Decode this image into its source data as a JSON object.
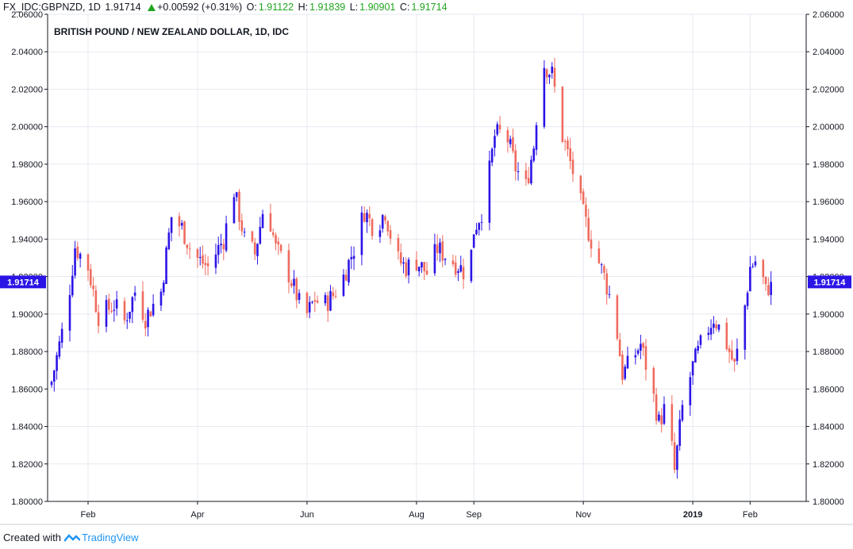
{
  "header": {
    "symbol": "FX_IDC:GBPNZD, 1D",
    "last": "1.91714",
    "change": "+0.00592 (+0.31%)",
    "o_label": "O:",
    "o_value": "1.91122",
    "h_label": "H:",
    "h_value": "1.91839",
    "l_label": "L:",
    "l_value": "1.90901",
    "c_label": "C:",
    "c_value": "1.91714"
  },
  "footer": {
    "created_with": "Created with",
    "brand": "TradingView"
  },
  "colors": {
    "up": "#2b14e6",
    "down": "#ef6b5e",
    "grid": "#e6e9f0",
    "axis": "#131722",
    "price_tag": "#2b14e6"
  },
  "chart_data": {
    "type": "candlestick",
    "title": "BRITISH POUND / NEW ZEALAND DOLLAR, 1D, IDC",
    "ylim": [
      1.8,
      2.06
    ],
    "y_ticks": [
      1.8,
      1.82,
      1.84,
      1.86,
      1.88,
      1.9,
      1.92,
      1.94,
      1.96,
      1.98,
      2.0,
      2.02,
      2.04,
      2.06
    ],
    "y_tick_labels": [
      "1.80000",
      "1.82000",
      "1.84000",
      "1.86000",
      "1.88000",
      "1.90000",
      "1.92000",
      "1.94000",
      "1.96000",
      "1.98000",
      "2.00000",
      "2.02000",
      "2.04000",
      "2.06000"
    ],
    "x_ticks": [
      {
        "label": "Feb",
        "index": 14
      },
      {
        "label": "Apr",
        "index": 56
      },
      {
        "label": "Jun",
        "index": 98
      },
      {
        "label": "Aug",
        "index": 140
      },
      {
        "label": "Sep",
        "index": 162
      },
      {
        "label": "Nov",
        "index": 204
      },
      {
        "label": "2019",
        "index": 246
      },
      {
        "label": "Feb",
        "index": 268
      }
    ],
    "last_price_label": "1.91714",
    "last_price": 1.91714,
    "grid": true,
    "close_path": [
      [
        0,
        1.864
      ],
      [
        6,
        1.903
      ],
      [
        9,
        1.936
      ],
      [
        14,
        1.925
      ],
      [
        18,
        1.899
      ],
      [
        24,
        1.905
      ],
      [
        28,
        1.896
      ],
      [
        32,
        1.912
      ],
      [
        36,
        1.898
      ],
      [
        42,
        1.912
      ],
      [
        46,
        1.952
      ],
      [
        50,
        1.946
      ],
      [
        54,
        1.932
      ],
      [
        60,
        1.925
      ],
      [
        66,
        1.94
      ],
      [
        70,
        1.966
      ],
      [
        74,
        1.94
      ],
      [
        78,
        1.932
      ],
      [
        82,
        1.962
      ],
      [
        86,
        1.935
      ],
      [
        90,
        1.925
      ],
      [
        94,
        1.91
      ],
      [
        97,
        1.897
      ],
      [
        101,
        1.908
      ],
      [
        104,
        1.904
      ],
      [
        108,
        1.91
      ],
      [
        112,
        1.92
      ],
      [
        116,
        1.935
      ],
      [
        120,
        1.955
      ],
      [
        124,
        1.945
      ],
      [
        128,
        1.955
      ],
      [
        132,
        1.93
      ],
      [
        136,
        1.925
      ],
      [
        140,
        1.928
      ],
      [
        144,
        1.922
      ],
      [
        148,
        1.935
      ],
      [
        152,
        1.93
      ],
      [
        156,
        1.926
      ],
      [
        160,
        1.92
      ],
      [
        162,
        1.945
      ],
      [
        166,
        1.958
      ],
      [
        170,
        1.995
      ],
      [
        174,
        1.998
      ],
      [
        178,
        1.978
      ],
      [
        182,
        1.968
      ],
      [
        185,
        1.99
      ],
      [
        188,
        2.035
      ],
      [
        192,
        2.028
      ],
      [
        196,
        1.995
      ],
      [
        200,
        1.976
      ],
      [
        204,
        1.953
      ],
      [
        208,
        1.935
      ],
      [
        212,
        1.92
      ],
      [
        216,
        1.9
      ],
      [
        219,
        1.868
      ],
      [
        222,
        1.874
      ],
      [
        226,
        1.884
      ],
      [
        230,
        1.862
      ],
      [
        233,
        1.842
      ],
      [
        236,
        1.852
      ],
      [
        239,
        1.816
      ],
      [
        242,
        1.85
      ],
      [
        246,
        1.872
      ],
      [
        250,
        1.887
      ],
      [
        254,
        1.898
      ],
      [
        258,
        1.888
      ],
      [
        262,
        1.872
      ],
      [
        265,
        1.894
      ],
      [
        268,
        1.925
      ],
      [
        271,
        1.93
      ],
      [
        274,
        1.912
      ],
      [
        276,
        1.917
      ]
    ]
  }
}
